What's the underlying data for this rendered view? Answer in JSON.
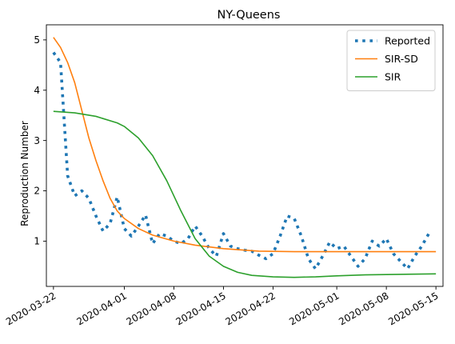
{
  "chart_data": {
    "type": "line",
    "title": "NY-Queens",
    "xlabel": "",
    "ylabel": "Reproduction Number",
    "x_range": [
      "2020-03-21",
      "2020-05-16"
    ],
    "ylim": [
      0.1,
      5.3
    ],
    "x_ticks": [
      "2020-03-22",
      "2020-04-01",
      "2020-04-08",
      "2020-04-15",
      "2020-04-22",
      "2020-05-01",
      "2020-05-08",
      "2020-05-15"
    ],
    "y_ticks": [
      1,
      2,
      3,
      4,
      5
    ],
    "grid": false,
    "legend": "top-right",
    "series": [
      {
        "name": "Reported",
        "color": "#1f77b4",
        "style": "dotted",
        "points": [
          [
            "2020-03-22",
            4.75
          ],
          [
            "2020-03-23",
            4.55
          ],
          [
            "2020-03-24",
            2.3
          ],
          [
            "2020-03-25",
            1.9
          ],
          [
            "2020-03-26",
            2.0
          ],
          [
            "2020-03-27",
            1.85
          ],
          [
            "2020-03-28",
            1.5
          ],
          [
            "2020-03-29",
            1.2
          ],
          [
            "2020-03-30",
            1.35
          ],
          [
            "2020-03-31",
            1.88
          ],
          [
            "2020-04-01",
            1.25
          ],
          [
            "2020-04-02",
            1.1
          ],
          [
            "2020-04-03",
            1.3
          ],
          [
            "2020-04-04",
            1.52
          ],
          [
            "2020-04-05",
            0.95
          ],
          [
            "2020-04-06",
            1.15
          ],
          [
            "2020-04-07",
            1.1
          ],
          [
            "2020-04-08",
            1.0
          ],
          [
            "2020-04-09",
            0.95
          ],
          [
            "2020-04-10",
            1.05
          ],
          [
            "2020-04-11",
            1.3
          ],
          [
            "2020-04-12",
            1.1
          ],
          [
            "2020-04-13",
            0.85
          ],
          [
            "2020-04-14",
            0.7
          ],
          [
            "2020-04-15",
            1.15
          ],
          [
            "2020-04-16",
            0.9
          ],
          [
            "2020-04-17",
            0.85
          ],
          [
            "2020-04-18",
            0.82
          ],
          [
            "2020-04-19",
            0.8
          ],
          [
            "2020-04-20",
            0.72
          ],
          [
            "2020-04-21",
            0.65
          ],
          [
            "2020-04-22",
            0.75
          ],
          [
            "2020-04-23",
            1.1
          ],
          [
            "2020-04-24",
            1.5
          ],
          [
            "2020-04-25",
            1.45
          ],
          [
            "2020-04-26",
            1.1
          ],
          [
            "2020-04-27",
            0.65
          ],
          [
            "2020-04-28",
            0.45
          ],
          [
            "2020-04-29",
            0.7
          ],
          [
            "2020-04-30",
            0.98
          ],
          [
            "2020-05-01",
            0.85
          ],
          [
            "2020-05-02",
            0.9
          ],
          [
            "2020-05-03",
            0.7
          ],
          [
            "2020-05-04",
            0.5
          ],
          [
            "2020-05-05",
            0.65
          ],
          [
            "2020-05-06",
            1.0
          ],
          [
            "2020-05-07",
            0.9
          ],
          [
            "2020-05-08",
            1.05
          ],
          [
            "2020-05-09",
            0.75
          ],
          [
            "2020-05-10",
            0.6
          ],
          [
            "2020-05-11",
            0.45
          ],
          [
            "2020-05-12",
            0.7
          ],
          [
            "2020-05-13",
            0.9
          ],
          [
            "2020-05-14",
            1.15
          ]
        ]
      },
      {
        "name": "SIR-SD",
        "color": "#ff7f0e",
        "style": "solid",
        "points": [
          [
            "2020-03-22",
            5.05
          ],
          [
            "2020-03-23",
            4.85
          ],
          [
            "2020-03-24",
            4.55
          ],
          [
            "2020-03-25",
            4.15
          ],
          [
            "2020-03-26",
            3.6
          ],
          [
            "2020-03-27",
            3.05
          ],
          [
            "2020-03-28",
            2.6
          ],
          [
            "2020-03-29",
            2.2
          ],
          [
            "2020-03-30",
            1.85
          ],
          [
            "2020-03-31",
            1.6
          ],
          [
            "2020-04-01",
            1.45
          ],
          [
            "2020-04-03",
            1.25
          ],
          [
            "2020-04-05",
            1.12
          ],
          [
            "2020-04-08",
            1.0
          ],
          [
            "2020-04-11",
            0.92
          ],
          [
            "2020-04-15",
            0.85
          ],
          [
            "2020-04-20",
            0.8
          ],
          [
            "2020-04-25",
            0.79
          ],
          [
            "2020-05-01",
            0.79
          ],
          [
            "2020-05-08",
            0.79
          ],
          [
            "2020-05-15",
            0.79
          ]
        ]
      },
      {
        "name": "SIR",
        "color": "#2ca02c",
        "style": "solid",
        "points": [
          [
            "2020-03-22",
            3.58
          ],
          [
            "2020-03-25",
            3.55
          ],
          [
            "2020-03-28",
            3.48
          ],
          [
            "2020-03-31",
            3.35
          ],
          [
            "2020-04-01",
            3.28
          ],
          [
            "2020-04-03",
            3.05
          ],
          [
            "2020-04-05",
            2.7
          ],
          [
            "2020-04-07",
            2.2
          ],
          [
            "2020-04-09",
            1.6
          ],
          [
            "2020-04-11",
            1.05
          ],
          [
            "2020-04-13",
            0.7
          ],
          [
            "2020-04-15",
            0.5
          ],
          [
            "2020-04-17",
            0.38
          ],
          [
            "2020-04-19",
            0.32
          ],
          [
            "2020-04-22",
            0.29
          ],
          [
            "2020-04-25",
            0.28
          ],
          [
            "2020-04-28",
            0.29
          ],
          [
            "2020-05-01",
            0.31
          ],
          [
            "2020-05-05",
            0.33
          ],
          [
            "2020-05-10",
            0.34
          ],
          [
            "2020-05-15",
            0.35
          ]
        ]
      }
    ]
  }
}
